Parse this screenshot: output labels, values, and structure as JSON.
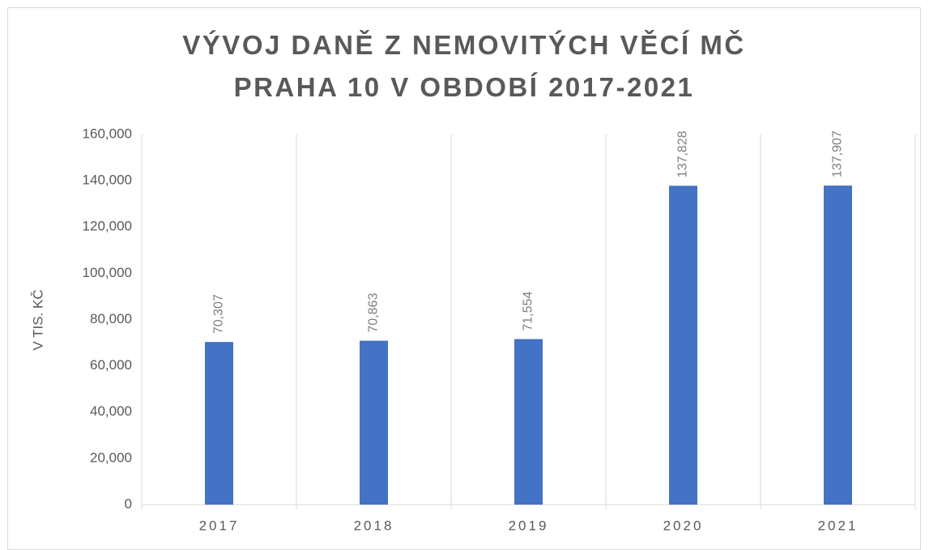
{
  "chart_data": {
    "type": "bar",
    "title": "VÝVOJ DANĚ Z NEMOVITÝCH VĚCÍ MČ PRAHA 10 V OBDOBÍ 2017-2021",
    "y_label": "V TIS. KČ",
    "categories": [
      "2017",
      "2018",
      "2019",
      "2020",
      "2021"
    ],
    "values": [
      70307,
      70863,
      71554,
      137828,
      137907
    ],
    "value_labels": [
      "70,307",
      "70,863",
      "71,554",
      "137,828",
      "137,907"
    ],
    "color": "#4472c4",
    "ylim": [
      0,
      160000
    ],
    "yticks": [
      0,
      {
        "value": 20000,
        "label": "20,000"
      },
      {
        "value": 40000,
        "label": "40,000"
      },
      {
        "value": 60000,
        "label": "60,000"
      },
      {
        "value": 80000,
        "label": "80,000"
      },
      {
        "value": 100000,
        "label": "100,000"
      },
      {
        "value": 120000,
        "label": "120,000"
      },
      {
        "value": 140000,
        "label": "140,000"
      },
      {
        "value": 160000,
        "label": "160,000"
      }
    ],
    "grid": "category"
  }
}
